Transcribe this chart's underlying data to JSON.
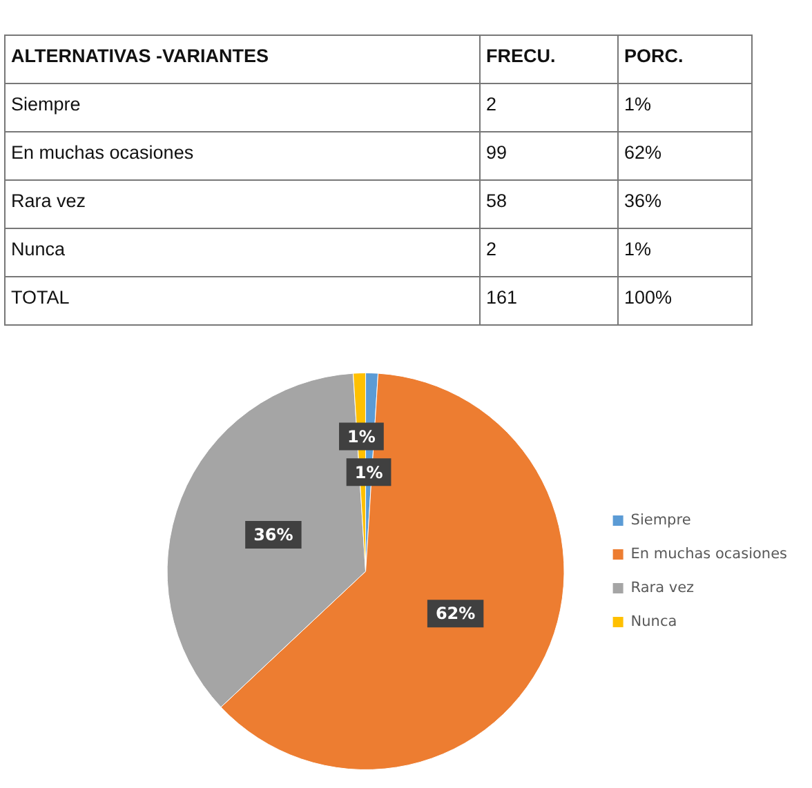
{
  "chart_data": [
    {
      "type": "other",
      "annotations": [
        "ALTERNATIVAS -VARIANTES",
        "FRECU.",
        "PORC.",
        "Siempre",
        "2",
        "1%",
        "En muchas ocasiones",
        "99",
        "62%",
        "Rara vez",
        "58",
        "36%",
        "Nunca",
        "2",
        "1%",
        "TOTAL",
        "161",
        "100%"
      ]
    },
    {
      "type": "pie",
      "categories": [
        "Siempre",
        "En muchas ocasiones",
        "Rara vez",
        "Nunca"
      ],
      "values": [
        1,
        62,
        36,
        1
      ],
      "colors": [
        "#5b9bd5",
        "#ed7d31",
        "#a5a5a5",
        "#ffc000"
      ],
      "value_labels": [
        "1%",
        "62%",
        "36%",
        "1%"
      ],
      "legend": "right"
    }
  ]
}
